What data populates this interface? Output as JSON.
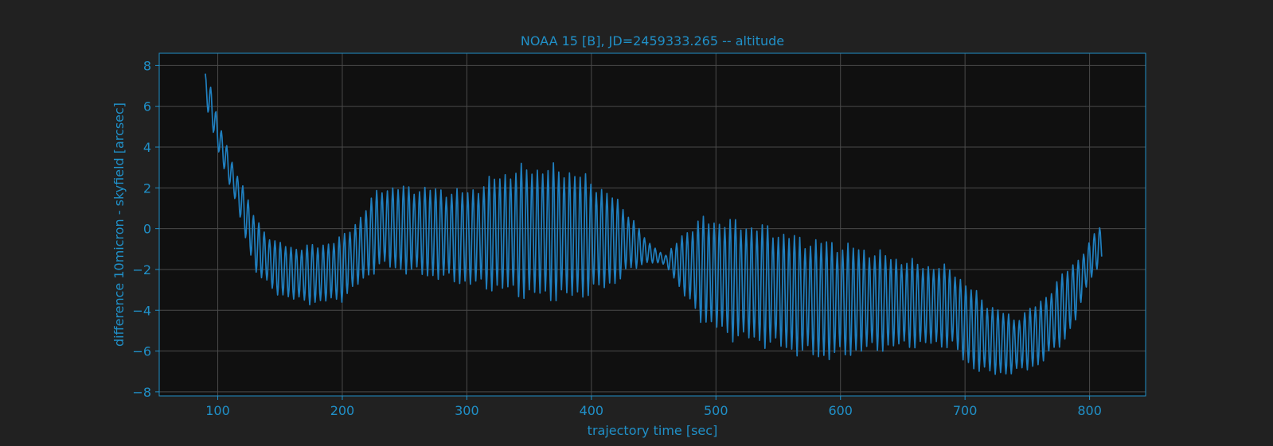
{
  "colors": {
    "figure_bg": "#212121",
    "plot_bg": "#101010",
    "text": "#2090c8",
    "spine": "#2090c8",
    "grid": "#4a4a4a",
    "series": "#2080c0"
  },
  "chart_data": {
    "type": "line",
    "title": "NOAA 15 [B], JD=2459333.265 -- altitude",
    "xlabel": "trajectory time [sec]",
    "ylabel": "difference 10micron - skyfield [arcsec]",
    "xlim": [
      53,
      845
    ],
    "ylim": [
      -8.2,
      8.6
    ],
    "xticks": [
      100,
      200,
      300,
      400,
      500,
      600,
      700,
      800
    ],
    "yticks": [
      8,
      6,
      4,
      2,
      0,
      -2,
      -4,
      -6,
      -8
    ],
    "grid": true,
    "legend": "none",
    "series": [
      {
        "oscillation_period_sec": 4.3,
        "envelope": {
          "x": [
            90,
            95,
            100,
            110,
            120,
            130,
            145,
            160,
            180,
            200,
            215,
            230,
            260,
            300,
            330,
            350,
            380,
            400,
            420,
            430,
            445,
            460,
            475,
            490,
            510,
            540,
            570,
            590,
            620,
            660,
            690,
            700,
            720,
            740,
            760,
            780,
            790,
            800,
            810
          ],
          "upper": [
            7.8,
            6.9,
            5.4,
            3.6,
            2.2,
            0.6,
            -0.5,
            -0.8,
            -0.7,
            -0.3,
            0.8,
            2.2,
            2.2,
            2.0,
            3.0,
            3.3,
            3.2,
            2.6,
            1.6,
            0.9,
            -0.6,
            -1.3,
            0.0,
            0.7,
            0.6,
            0.3,
            -0.3,
            -0.4,
            -0.8,
            -1.5,
            -1.8,
            -2.5,
            -3.6,
            -4.3,
            -3.5,
            -2.0,
            -1.4,
            -0.6,
            0.4
          ],
          "lower": [
            6.0,
            5.0,
            3.8,
            2.0,
            0.0,
            -2.2,
            -3.2,
            -3.6,
            -3.8,
            -3.6,
            -2.8,
            -2.0,
            -2.4,
            -2.9,
            -3.3,
            -3.6,
            -3.7,
            -3.4,
            -2.8,
            -2.2,
            -1.7,
            -1.8,
            -3.5,
            -4.8,
            -5.5,
            -5.9,
            -6.4,
            -6.6,
            -6.2,
            -5.9,
            -5.9,
            -6.8,
            -7.3,
            -7.2,
            -6.8,
            -5.6,
            -4.5,
            -2.5,
            -1.8
          ]
        }
      }
    ]
  }
}
